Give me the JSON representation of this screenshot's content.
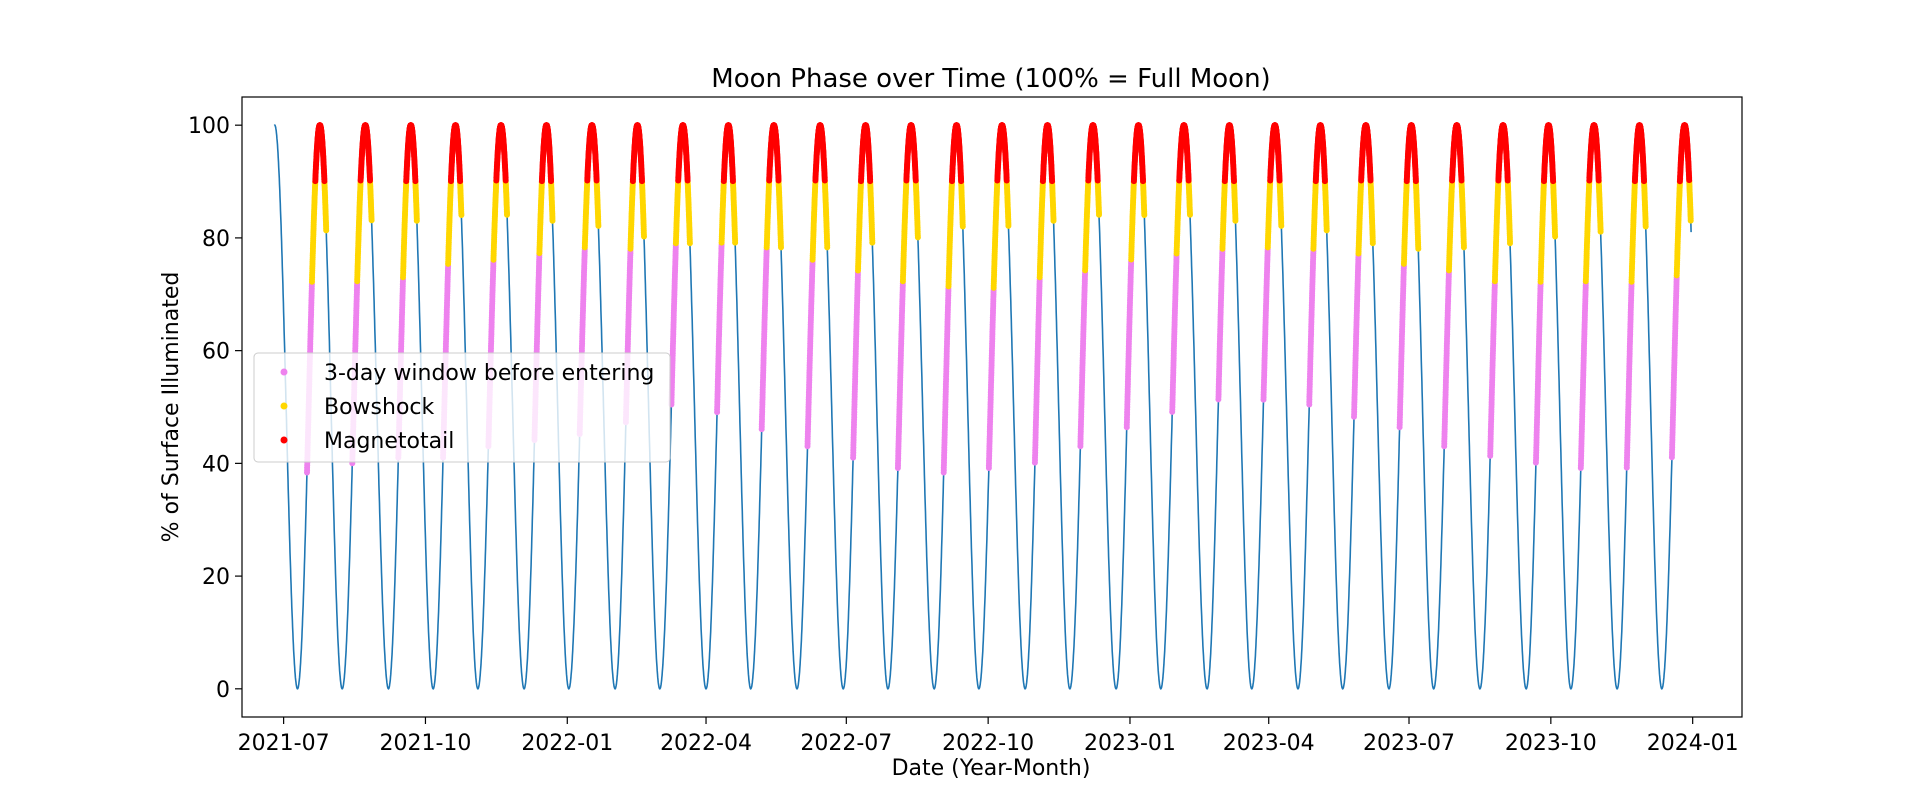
{
  "chart_data": {
    "type": "line",
    "title": "Moon Phase over Time (100% = Full Moon)",
    "xlabel": "Date (Year-Month)",
    "ylabel": "% of Surface Illuminated",
    "x_range": [
      "2021-06-04",
      "2024-02-02"
    ],
    "ylim": [
      -5,
      105
    ],
    "x_ticks": [
      "2021-07",
      "2021-10",
      "2022-01",
      "2022-04",
      "2022-07",
      "2022-10",
      "2023-01",
      "2023-04",
      "2023-07",
      "2023-10",
      "2024-01"
    ],
    "y_ticks": [
      0,
      20,
      40,
      60,
      80,
      100
    ],
    "grid": false,
    "legend_position": "center-left",
    "series": [
      {
        "name": "",
        "kind": "line",
        "color": "#1f77b4",
        "description_values": "percent illuminated, daily from 2021-06-25 to 2023-12-31",
        "new_moons": [
          "2021-07-10",
          "2021-08-08",
          "2021-09-07",
          "2021-10-06",
          "2021-11-04",
          "2021-12-04",
          "2022-01-02",
          "2022-02-01",
          "2022-03-02",
          "2022-04-01",
          "2022-04-30",
          "2022-05-30",
          "2022-06-29",
          "2022-07-28",
          "2022-08-27",
          "2022-09-25",
          "2022-10-25",
          "2022-11-23",
          "2022-12-23",
          "2023-01-21",
          "2023-02-20",
          "2023-03-21",
          "2023-04-20",
          "2023-05-19",
          "2023-06-18",
          "2023-07-17",
          "2023-08-16",
          "2023-09-15",
          "2023-10-14",
          "2023-11-13",
          "2023-12-12"
        ],
        "x_start": "2021-06-25",
        "x_end": "2023-12-31",
        "y_min": 0,
        "y_max": 100,
        "y_end": 78
      },
      {
        "name": "3-day window before entering",
        "kind": "scatter",
        "color": "#ee82ee",
        "y_from": [
          38,
          40,
          41,
          41,
          43,
          44,
          45,
          47,
          50,
          49,
          46,
          43,
          41,
          39,
          38,
          39,
          40,
          43,
          46,
          49,
          51,
          51,
          50,
          48,
          46,
          43,
          41,
          40,
          39,
          39,
          41
        ],
        "y_to": [
          72,
          72,
          73,
          75,
          76,
          77,
          78,
          78,
          79,
          79,
          78,
          76,
          74,
          72,
          71,
          71,
          73,
          74,
          76,
          77,
          78,
          78,
          78,
          77,
          75,
          74,
          72,
          72,
          72,
          72,
          73
        ]
      },
      {
        "name": "Bowshock",
        "kind": "scatter",
        "color": "#ffd700",
        "y_from": [
          72,
          72,
          73,
          75,
          76,
          77,
          78,
          78,
          79,
          79,
          78,
          76,
          74,
          72,
          71,
          71,
          73,
          74,
          76,
          77,
          78,
          78,
          78,
          77,
          75,
          74,
          72,
          72,
          72,
          72,
          73
        ],
        "y_to_falling": [
          81,
          83,
          83,
          84,
          84,
          83,
          82,
          80,
          79,
          79,
          78,
          78,
          79,
          80,
          82,
          82,
          83,
          84,
          84,
          84,
          83,
          82,
          81,
          79,
          78,
          78,
          79,
          80,
          81,
          82,
          83
        ]
      },
      {
        "name": "Magnetotail",
        "kind": "scatter",
        "color": "#ff0000",
        "y_from": 90,
        "y_to": 100
      }
    ]
  }
}
